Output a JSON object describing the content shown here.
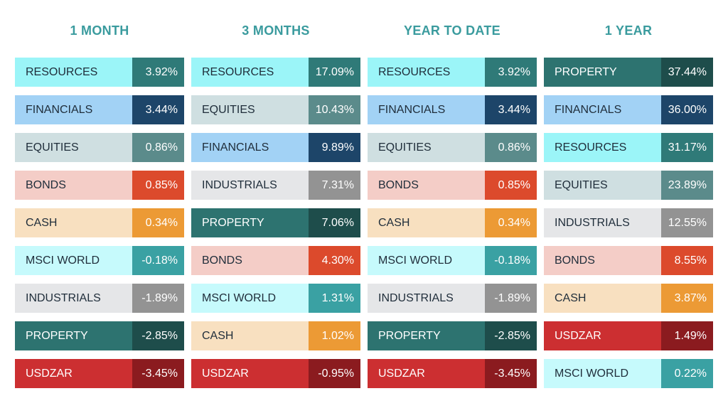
{
  "colors": {
    "title": "#3a9b9e",
    "categories": {
      "RESOURCES": {
        "light": "#9bf5f8",
        "dark": "#2f7a78",
        "light_text": "#1f2d3a",
        "dark_text": "#ffffff"
      },
      "FINANCIALS": {
        "light": "#a2d2f5",
        "dark": "#1d4569",
        "light_text": "#1f2d3a",
        "dark_text": "#ffffff"
      },
      "EQUITIES": {
        "light": "#cfdfe1",
        "dark": "#5b8b8b",
        "light_text": "#1f2d3a",
        "dark_text": "#ffffff"
      },
      "BONDS": {
        "light": "#f4cdc7",
        "dark": "#dc4a2c",
        "light_text": "#1f2d3a",
        "dark_text": "#ffffff"
      },
      "CASH": {
        "light": "#f8e0c0",
        "dark": "#ec9a35",
        "light_text": "#1f2d3a",
        "dark_text": "#ffffff"
      },
      "MSCI WORLD": {
        "light": "#c6fafc",
        "dark": "#3aa1a3",
        "light_text": "#1f2d3a",
        "dark_text": "#ffffff"
      },
      "INDUSTRIALS": {
        "light": "#e5e6e8",
        "dark": "#939393",
        "light_text": "#1f2d3a",
        "dark_text": "#ffffff"
      },
      "PROPERTY": {
        "light": "#2d7370",
        "dark": "#1e4d4b",
        "light_text": "#ffffff",
        "dark_text": "#ffffff"
      },
      "USDZAR": {
        "light": "#cc2f31",
        "dark": "#8b1b1f",
        "light_text": "#ffffff",
        "dark_text": "#ffffff"
      }
    }
  },
  "chart_data": {
    "type": "table",
    "columns": [
      {
        "title": "1 MONTH",
        "rows": [
          {
            "name": "RESOURCES",
            "value": "3.92%"
          },
          {
            "name": "FINANCIALS",
            "value": "3.44%"
          },
          {
            "name": "EQUITIES",
            "value": "0.86%"
          },
          {
            "name": "BONDS",
            "value": "0.85%"
          },
          {
            "name": "CASH",
            "value": "0.34%"
          },
          {
            "name": "MSCI WORLD",
            "value": "-0.18%"
          },
          {
            "name": "INDUSTRIALS",
            "value": "-1.89%"
          },
          {
            "name": "PROPERTY",
            "value": "-2.85%"
          },
          {
            "name": "USDZAR",
            "value": "-3.45%"
          }
        ]
      },
      {
        "title": "3 MONTHS",
        "rows": [
          {
            "name": "RESOURCES",
            "value": "17.09%"
          },
          {
            "name": "EQUITIES",
            "value": "10.43%"
          },
          {
            "name": "FINANCIALS",
            "value": "9.89%"
          },
          {
            "name": "INDUSTRIALS",
            "value": "7.31%"
          },
          {
            "name": "PROPERTY",
            "value": "7.06%"
          },
          {
            "name": "BONDS",
            "value": "4.30%"
          },
          {
            "name": "MSCI WORLD",
            "value": "1.31%"
          },
          {
            "name": "CASH",
            "value": "1.02%"
          },
          {
            "name": "USDZAR",
            "value": "-0.95%"
          }
        ]
      },
      {
        "title": "YEAR TO DATE",
        "rows": [
          {
            "name": "RESOURCES",
            "value": "3.92%"
          },
          {
            "name": "FINANCIALS",
            "value": "3.44%"
          },
          {
            "name": "EQUITIES",
            "value": "0.86%"
          },
          {
            "name": "BONDS",
            "value": "0.85%"
          },
          {
            "name": "CASH",
            "value": "0.34%"
          },
          {
            "name": "MSCI WORLD",
            "value": "-0.18%"
          },
          {
            "name": "INDUSTRIALS",
            "value": "-1.89%"
          },
          {
            "name": "PROPERTY",
            "value": "-2.85%"
          },
          {
            "name": "USDZAR",
            "value": "-3.45%"
          }
        ]
      },
      {
        "title": "1 YEAR",
        "rows": [
          {
            "name": "PROPERTY",
            "value": "37.44%"
          },
          {
            "name": "FINANCIALS",
            "value": "36.00%"
          },
          {
            "name": "RESOURCES",
            "value": "31.17%"
          },
          {
            "name": "EQUITIES",
            "value": "23.89%"
          },
          {
            "name": "INDUSTRIALS",
            "value": "12.55%"
          },
          {
            "name": "BONDS",
            "value": "8.55%"
          },
          {
            "name": "CASH",
            "value": "3.87%"
          },
          {
            "name": "USDZAR",
            "value": "1.49%"
          },
          {
            "name": "MSCI WORLD",
            "value": "0.22%"
          }
        ]
      }
    ]
  }
}
